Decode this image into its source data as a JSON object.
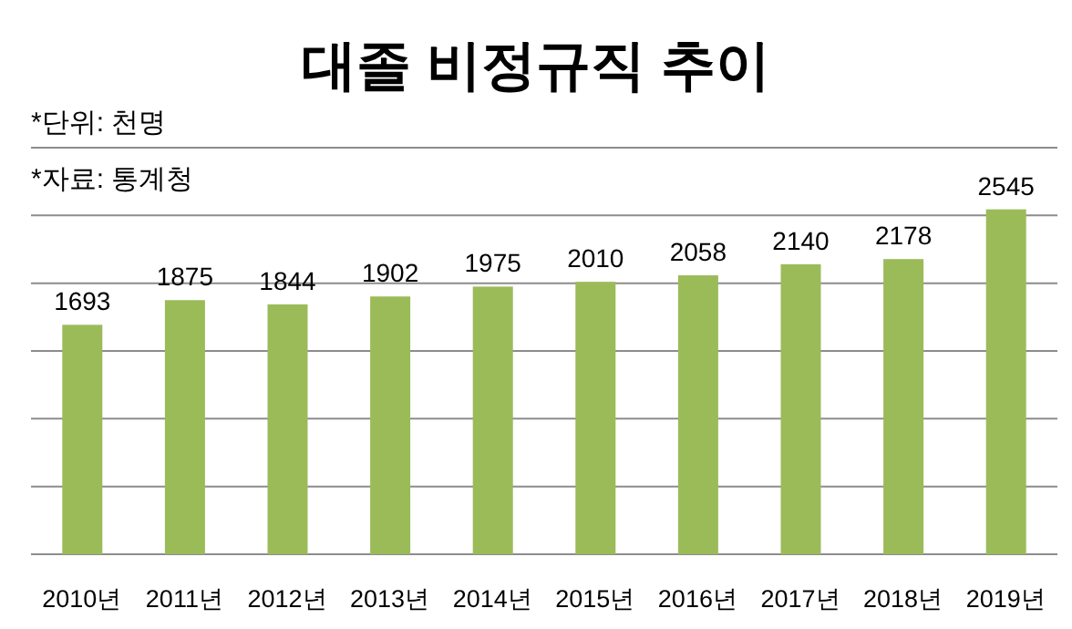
{
  "chart_data": {
    "type": "bar",
    "title": "대졸 비정규직 추이",
    "annotations": [
      "*단위: 천명",
      "*자료: 통계청"
    ],
    "categories": [
      "2010년",
      "2011년",
      "2012년",
      "2013년",
      "2014년",
      "2015년",
      "2016년",
      "2017년",
      "2018년",
      "2019년"
    ],
    "values": [
      1693,
      1875,
      1844,
      1902,
      1975,
      2010,
      2058,
      2140,
      2178,
      2545
    ],
    "color": "#9bbb59",
    "ylim": [
      0,
      3000
    ],
    "yticks": [
      {
        "value": 0,
        "label": null
      },
      {
        "value": 500,
        "label": null
      },
      {
        "value": 1000,
        "label": null
      },
      {
        "value": 1500,
        "label": null
      },
      {
        "value": 2000,
        "label": null
      },
      {
        "value": 2500,
        "label": null
      },
      {
        "value": 3000,
        "label": null
      }
    ],
    "grid": "y",
    "data_labels": true
  }
}
